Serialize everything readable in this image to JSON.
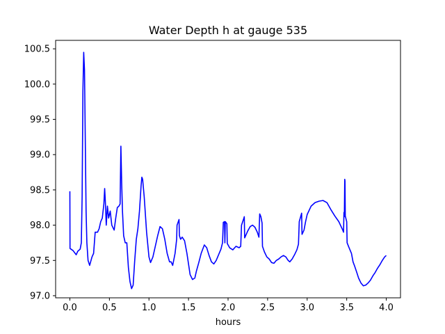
{
  "chart_data": {
    "type": "line",
    "title": "Water Depth h at gauge 535",
    "xlabel": "hours",
    "ylabel": "",
    "xlim": [
      -0.18,
      4.18
    ],
    "ylim": [
      96.97,
      100.62
    ],
    "xticks": [
      0.0,
      0.5,
      1.0,
      1.5,
      2.0,
      2.5,
      3.0,
      3.5,
      4.0
    ],
    "xtick_labels": [
      "0.0",
      "0.5",
      "1.0",
      "1.5",
      "2.0",
      "2.5",
      "3.0",
      "3.5",
      "4.0"
    ],
    "yticks": [
      97.0,
      97.5,
      98.0,
      98.5,
      99.0,
      99.5,
      100.0,
      100.5
    ],
    "ytick_labels": [
      "97.0",
      "97.5",
      "98.0",
      "98.5",
      "99.0",
      "99.5",
      "100.0",
      "100.5"
    ],
    "grid": false,
    "series": [
      {
        "color": "#0000ff",
        "points": [
          [
            0.0,
            98.48
          ],
          [
            0.002,
            97.67
          ],
          [
            0.04,
            97.64
          ],
          [
            0.08,
            97.58
          ],
          [
            0.1,
            97.63
          ],
          [
            0.13,
            97.66
          ],
          [
            0.145,
            97.75
          ],
          [
            0.155,
            98.4
          ],
          [
            0.165,
            99.9
          ],
          [
            0.175,
            100.45
          ],
          [
            0.185,
            100.2
          ],
          [
            0.195,
            99.2
          ],
          [
            0.205,
            98.2
          ],
          [
            0.215,
            97.75
          ],
          [
            0.23,
            97.5
          ],
          [
            0.25,
            97.43
          ],
          [
            0.28,
            97.55
          ],
          [
            0.3,
            97.6
          ],
          [
            0.32,
            97.9
          ],
          [
            0.35,
            97.9
          ],
          [
            0.37,
            97.95
          ],
          [
            0.39,
            98.05
          ],
          [
            0.41,
            98.1
          ],
          [
            0.43,
            98.3
          ],
          [
            0.44,
            98.52
          ],
          [
            0.45,
            98.3
          ],
          [
            0.46,
            98.0
          ],
          [
            0.475,
            98.27
          ],
          [
            0.49,
            98.1
          ],
          [
            0.51,
            98.2
          ],
          [
            0.53,
            98.0
          ],
          [
            0.56,
            97.93
          ],
          [
            0.58,
            98.1
          ],
          [
            0.6,
            98.25
          ],
          [
            0.62,
            98.27
          ],
          [
            0.635,
            98.3
          ],
          [
            0.645,
            99.12
          ],
          [
            0.655,
            98.6
          ],
          [
            0.665,
            98.2
          ],
          [
            0.68,
            97.85
          ],
          [
            0.7,
            97.75
          ],
          [
            0.72,
            97.75
          ],
          [
            0.74,
            97.4
          ],
          [
            0.76,
            97.2
          ],
          [
            0.78,
            97.1
          ],
          [
            0.8,
            97.15
          ],
          [
            0.82,
            97.5
          ],
          [
            0.84,
            97.8
          ],
          [
            0.86,
            97.95
          ],
          [
            0.88,
            98.2
          ],
          [
            0.9,
            98.55
          ],
          [
            0.91,
            98.68
          ],
          [
            0.92,
            98.65
          ],
          [
            0.94,
            98.4
          ],
          [
            0.97,
            97.9
          ],
          [
            1.0,
            97.55
          ],
          [
            1.02,
            97.47
          ],
          [
            1.05,
            97.55
          ],
          [
            1.08,
            97.7
          ],
          [
            1.11,
            97.85
          ],
          [
            1.14,
            97.98
          ],
          [
            1.17,
            97.95
          ],
          [
            1.2,
            97.8
          ],
          [
            1.23,
            97.6
          ],
          [
            1.26,
            97.48
          ],
          [
            1.28,
            97.48
          ],
          [
            1.3,
            97.43
          ],
          [
            1.33,
            97.6
          ],
          [
            1.35,
            97.8
          ],
          [
            1.355,
            98.0
          ],
          [
            1.38,
            98.08
          ],
          [
            1.385,
            97.85
          ],
          [
            1.4,
            97.8
          ],
          [
            1.42,
            97.83
          ],
          [
            1.45,
            97.78
          ],
          [
            1.48,
            97.6
          ],
          [
            1.5,
            97.45
          ],
          [
            1.52,
            97.3
          ],
          [
            1.55,
            97.23
          ],
          [
            1.58,
            97.25
          ],
          [
            1.6,
            97.35
          ],
          [
            1.63,
            97.47
          ],
          [
            1.66,
            97.6
          ],
          [
            1.7,
            97.72
          ],
          [
            1.73,
            97.68
          ],
          [
            1.76,
            97.57
          ],
          [
            1.79,
            97.48
          ],
          [
            1.82,
            97.45
          ],
          [
            1.85,
            97.5
          ],
          [
            1.88,
            97.58
          ],
          [
            1.91,
            97.66
          ],
          [
            1.93,
            97.75
          ],
          [
            1.94,
            98.04
          ],
          [
            1.955,
            98.05
          ],
          [
            1.96,
            97.75
          ],
          [
            1.965,
            98.05
          ],
          [
            1.985,
            98.02
          ],
          [
            1.99,
            97.74
          ],
          [
            2.02,
            97.68
          ],
          [
            2.06,
            97.65
          ],
          [
            2.1,
            97.7
          ],
          [
            2.14,
            97.68
          ],
          [
            2.16,
            97.7
          ],
          [
            2.17,
            98.0
          ],
          [
            2.2,
            98.1
          ],
          [
            2.205,
            98.12
          ],
          [
            2.21,
            97.82
          ],
          [
            2.25,
            97.92
          ],
          [
            2.28,
            97.98
          ],
          [
            2.31,
            98.0
          ],
          [
            2.34,
            97.97
          ],
          [
            2.37,
            97.9
          ],
          [
            2.39,
            97.83
          ],
          [
            2.4,
            98.16
          ],
          [
            2.415,
            98.12
          ],
          [
            2.43,
            98.03
          ],
          [
            2.435,
            97.7
          ],
          [
            2.46,
            97.62
          ],
          [
            2.49,
            97.55
          ],
          [
            2.52,
            97.52
          ],
          [
            2.55,
            97.47
          ],
          [
            2.58,
            97.46
          ],
          [
            2.61,
            97.5
          ],
          [
            2.64,
            97.52
          ],
          [
            2.67,
            97.55
          ],
          [
            2.7,
            97.57
          ],
          [
            2.73,
            97.55
          ],
          [
            2.76,
            97.5
          ],
          [
            2.78,
            97.48
          ],
          [
            2.81,
            97.52
          ],
          [
            2.84,
            97.58
          ],
          [
            2.87,
            97.65
          ],
          [
            2.89,
            97.73
          ],
          [
            2.9,
            98.05
          ],
          [
            2.925,
            98.15
          ],
          [
            2.93,
            98.17
          ],
          [
            2.935,
            97.87
          ],
          [
            2.96,
            97.93
          ],
          [
            2.98,
            98.05
          ],
          [
            3.0,
            98.15
          ],
          [
            3.05,
            98.27
          ],
          [
            3.1,
            98.32
          ],
          [
            3.15,
            98.34
          ],
          [
            3.2,
            98.35
          ],
          [
            3.25,
            98.32
          ],
          [
            3.3,
            98.22
          ],
          [
            3.35,
            98.13
          ],
          [
            3.4,
            98.05
          ],
          [
            3.45,
            97.93
          ],
          [
            3.46,
            97.9
          ],
          [
            3.465,
            98.18
          ],
          [
            3.47,
            98.12
          ],
          [
            3.475,
            98.65
          ],
          [
            3.478,
            98.63
          ],
          [
            3.482,
            98.13
          ],
          [
            3.5,
            98.05
          ],
          [
            3.505,
            97.75
          ],
          [
            3.53,
            97.68
          ],
          [
            3.56,
            97.6
          ],
          [
            3.58,
            97.48
          ],
          [
            3.6,
            97.42
          ],
          [
            3.63,
            97.32
          ],
          [
            3.65,
            97.25
          ],
          [
            3.68,
            97.18
          ],
          [
            3.71,
            97.14
          ],
          [
            3.74,
            97.15
          ],
          [
            3.77,
            97.18
          ],
          [
            3.8,
            97.22
          ],
          [
            3.83,
            97.28
          ],
          [
            3.86,
            97.33
          ],
          [
            3.89,
            97.39
          ],
          [
            3.92,
            97.44
          ],
          [
            3.95,
            97.5
          ],
          [
            3.98,
            97.55
          ],
          [
            4.0,
            97.57
          ]
        ]
      }
    ]
  }
}
